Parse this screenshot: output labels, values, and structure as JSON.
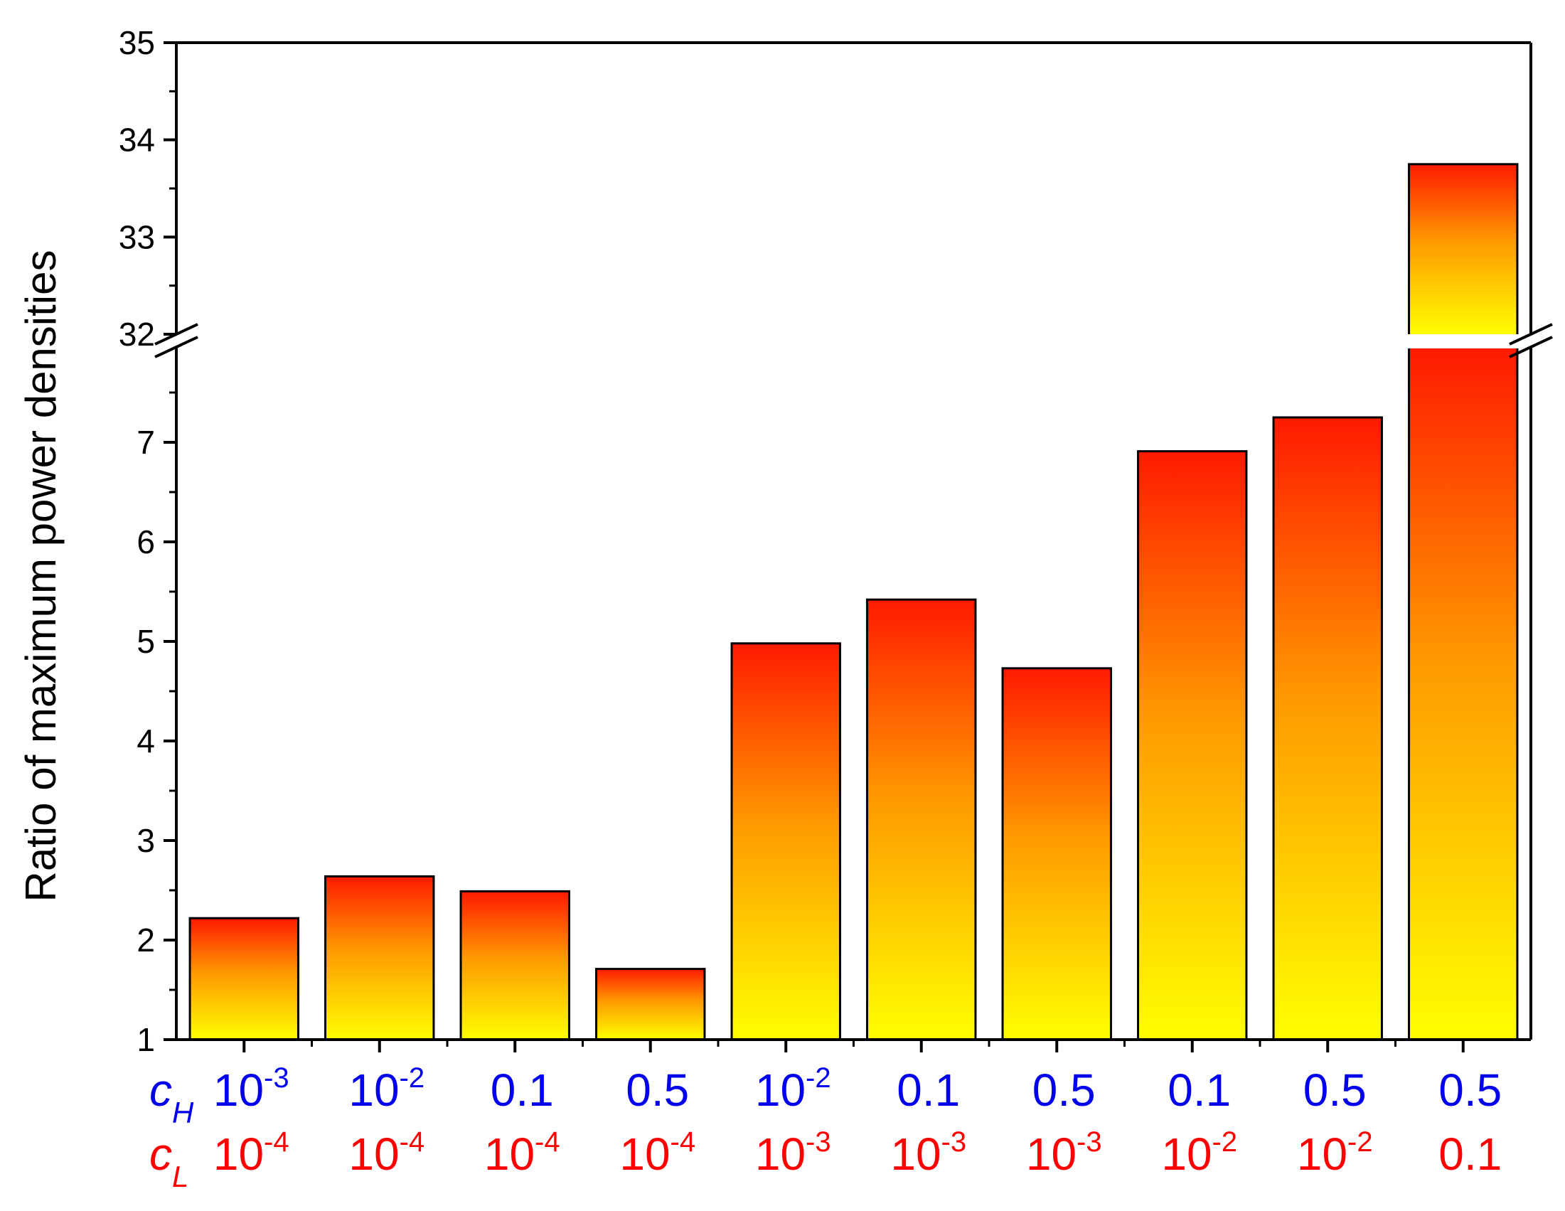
{
  "colors": {
    "cH": "#0000ee",
    "cL": "#ff0000",
    "bar_top": "#ff1a00",
    "bar_mid": "#ff9900",
    "bar_bottom": "#ffff00",
    "axis": "#000000"
  },
  "chart_data": {
    "type": "bar",
    "title": "",
    "ylabel": "Ratio of maximum power densities",
    "xlabel": "",
    "ylim_lower": [
      1,
      8
    ],
    "ylim_upper": [
      32,
      35
    ],
    "axis_break": true,
    "y_tick_labels_lower": [
      "1",
      "2",
      "3",
      "4",
      "5",
      "6",
      "7"
    ],
    "y_tick_labels_upper": [
      "32",
      "33",
      "34",
      "35"
    ],
    "row_labels": {
      "cH": {
        "base": "c",
        "sub": "H"
      },
      "cL": {
        "base": "c",
        "sub": "L"
      }
    },
    "categories": [
      {
        "cH": {
          "base": "10",
          "exp": "-3"
        },
        "cL": {
          "base": "10",
          "exp": "-4"
        }
      },
      {
        "cH": {
          "base": "10",
          "exp": "-2"
        },
        "cL": {
          "base": "10",
          "exp": "-4"
        }
      },
      {
        "cH": {
          "base": "0.1",
          "exp": ""
        },
        "cL": {
          "base": "10",
          "exp": "-4"
        }
      },
      {
        "cH": {
          "base": "0.5",
          "exp": ""
        },
        "cL": {
          "base": "10",
          "exp": "-4"
        }
      },
      {
        "cH": {
          "base": "10",
          "exp": "-2"
        },
        "cL": {
          "base": "10",
          "exp": "-3"
        }
      },
      {
        "cH": {
          "base": "0.1",
          "exp": ""
        },
        "cL": {
          "base": "10",
          "exp": "-3"
        }
      },
      {
        "cH": {
          "base": "0.5",
          "exp": ""
        },
        "cL": {
          "base": "10",
          "exp": "-3"
        }
      },
      {
        "cH": {
          "base": "0.1",
          "exp": ""
        },
        "cL": {
          "base": "10",
          "exp": "-2"
        }
      },
      {
        "cH": {
          "base": "0.5",
          "exp": ""
        },
        "cL": {
          "base": "10",
          "exp": "-2"
        }
      },
      {
        "cH": {
          "base": "0.5",
          "exp": ""
        },
        "cL": {
          "base": "0.1",
          "exp": ""
        }
      }
    ],
    "values": [
      2.22,
      2.64,
      2.49,
      1.71,
      4.98,
      5.42,
      4.73,
      6.91,
      7.25,
      33.75
    ]
  }
}
